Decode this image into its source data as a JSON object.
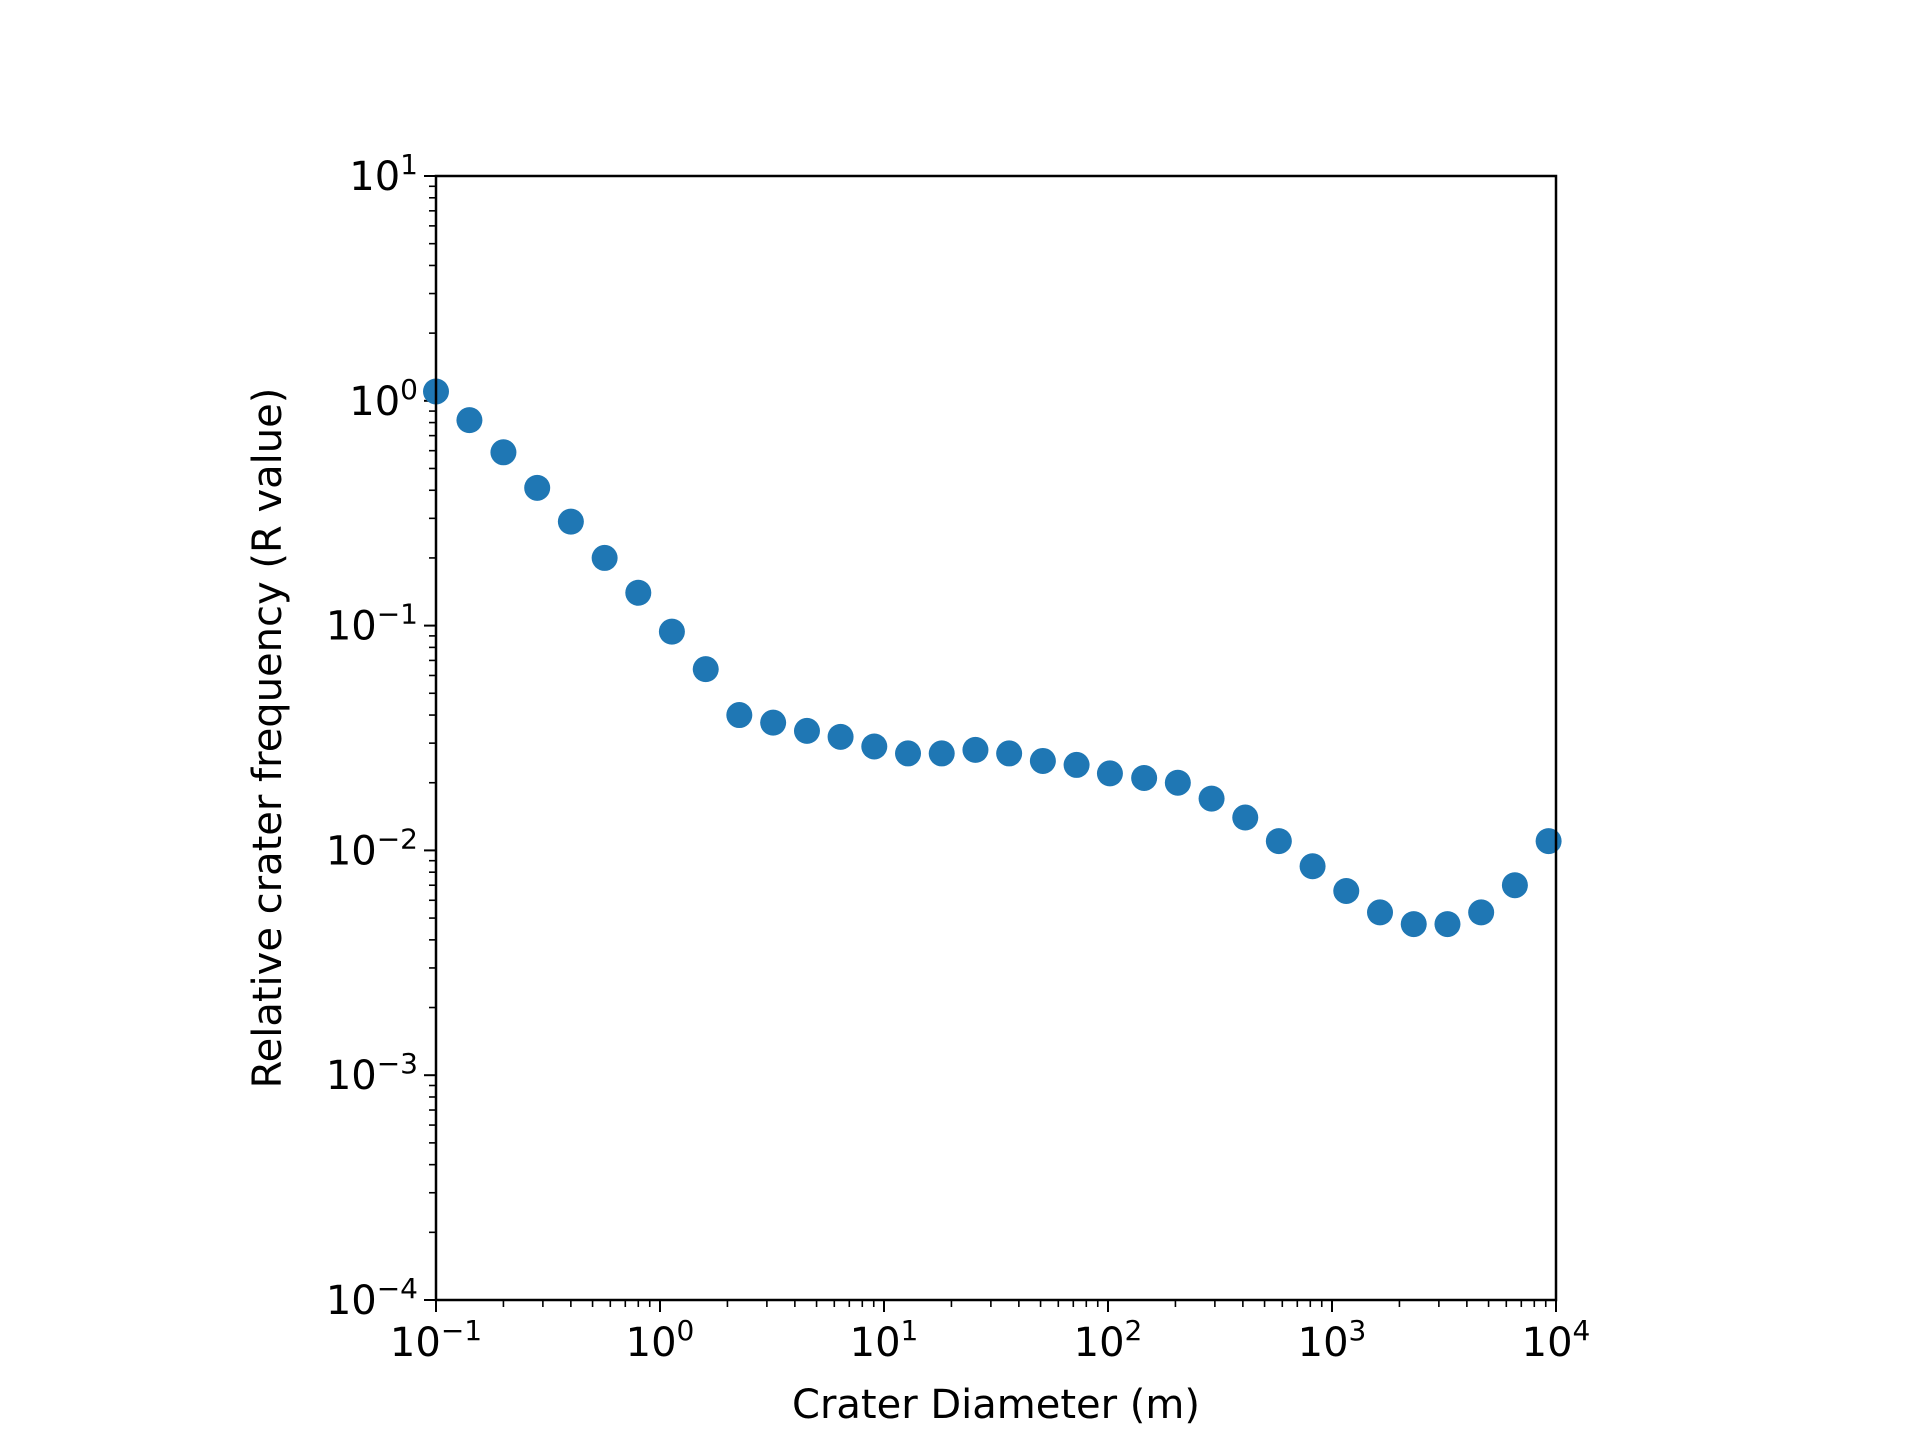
{
  "chart_data": {
    "type": "scatter",
    "title": "",
    "xlabel": "Crater Diameter (m)",
    "ylabel": "Relative crater frequency (R value)",
    "xscale": "log",
    "yscale": "log",
    "xlim": [
      0.1,
      10000
    ],
    "ylim": [
      0.0001,
      10
    ],
    "grid": false,
    "legend": "none",
    "marker_color": "#1f77b4",
    "x_ticks": [
      {
        "value": 0.1,
        "base": "10",
        "exp": "−1"
      },
      {
        "value": 1,
        "base": "10",
        "exp": "0"
      },
      {
        "value": 10,
        "base": "10",
        "exp": "1"
      },
      {
        "value": 100,
        "base": "10",
        "exp": "2"
      },
      {
        "value": 1000,
        "base": "10",
        "exp": "3"
      },
      {
        "value": 10000,
        "base": "10",
        "exp": "4"
      }
    ],
    "y_ticks": [
      {
        "value": 0.0001,
        "base": "10",
        "exp": "−4"
      },
      {
        "value": 0.001,
        "base": "10",
        "exp": "−3"
      },
      {
        "value": 0.01,
        "base": "10",
        "exp": "−2"
      },
      {
        "value": 0.1,
        "base": "10",
        "exp": "−1"
      },
      {
        "value": 1,
        "base": "10",
        "exp": "0"
      },
      {
        "value": 10,
        "base": "10",
        "exp": "1"
      }
    ],
    "x": [
      0.1,
      0.141,
      0.2,
      0.283,
      0.4,
      0.566,
      0.8,
      1.13,
      1.6,
      2.26,
      3.2,
      4.53,
      6.4,
      9.05,
      12.8,
      18.1,
      25.6,
      36.2,
      51.2,
      72.4,
      102,
      145,
      205,
      290,
      410,
      579,
      819,
      1158,
      1638,
      2317,
      3277,
      4634,
      6554,
      9268
    ],
    "y": [
      1.1,
      0.82,
      0.59,
      0.41,
      0.29,
      0.2,
      0.14,
      0.094,
      0.064,
      0.04,
      0.037,
      0.034,
      0.032,
      0.029,
      0.027,
      0.027,
      0.028,
      0.027,
      0.025,
      0.024,
      0.022,
      0.021,
      0.02,
      0.017,
      0.014,
      0.011,
      0.0085,
      0.0066,
      0.0053,
      0.0047,
      0.0047,
      0.0053,
      0.007,
      0.011
    ]
  }
}
